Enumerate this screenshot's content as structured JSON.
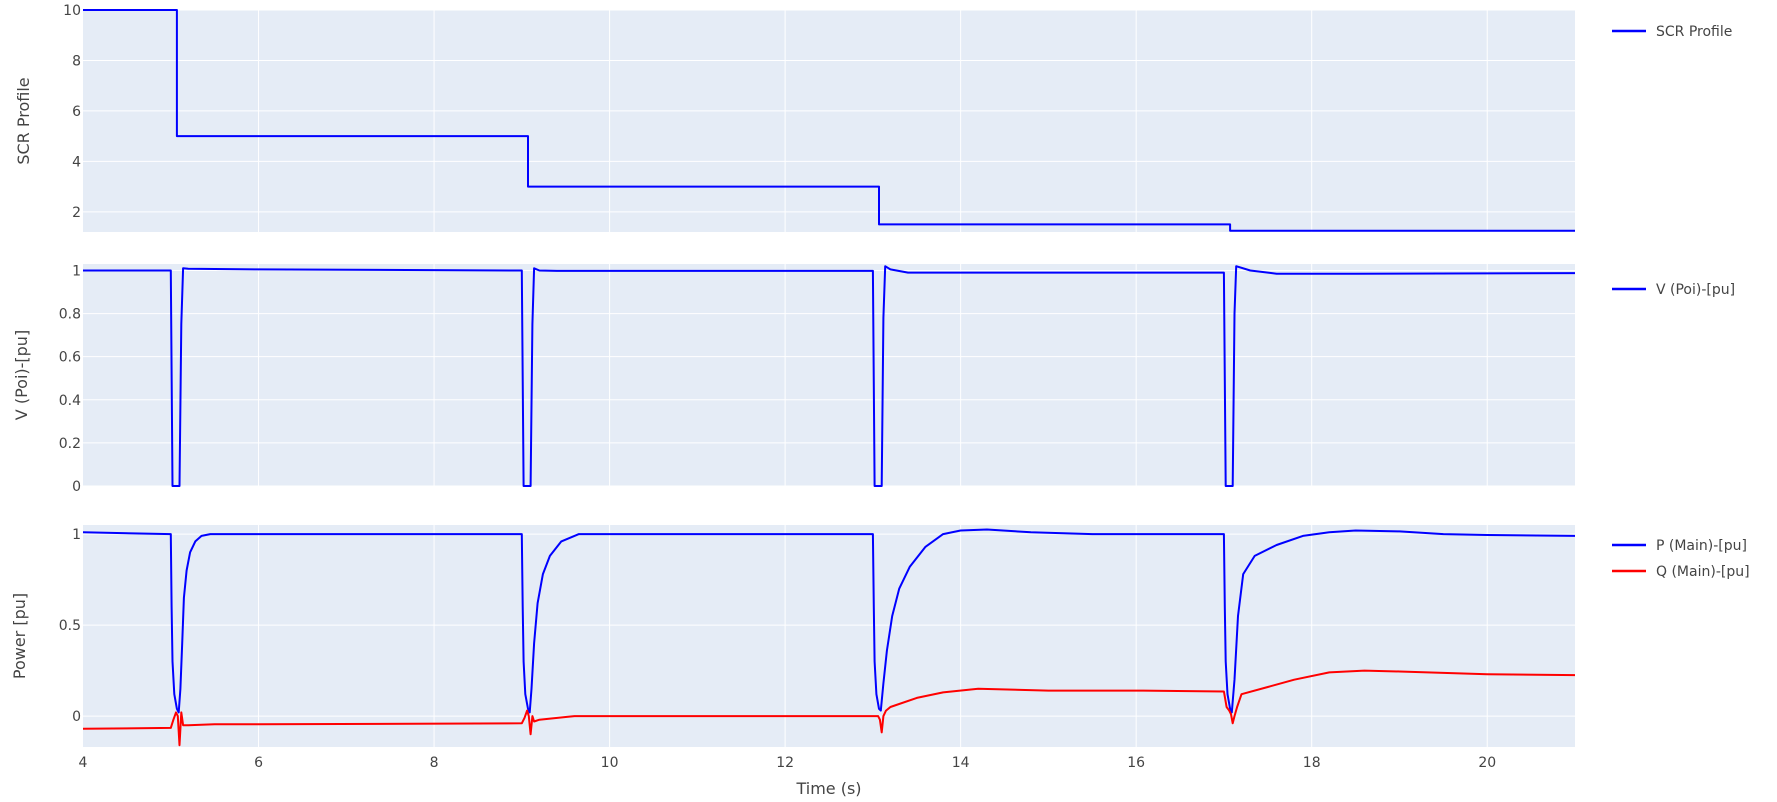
{
  "chart_data": {
    "type": "line",
    "xlabel": "Time (s)",
    "xlim": [
      4,
      21
    ],
    "x_ticks": [
      "4",
      "6",
      "8",
      "10",
      "12",
      "14",
      "16",
      "18",
      "20"
    ],
    "grid": true,
    "legend": "right",
    "subplots": [
      {
        "ylabel": "SCR Profile",
        "ylim": [
          1.2,
          10
        ],
        "y_ticks": [
          "2",
          "4",
          "6",
          "8",
          "10"
        ],
        "series": [
          {
            "name": "SCR Profile",
            "color": "#0000ff",
            "x": [
              4,
              5.07,
              5.07,
              9.07,
              9.07,
              13.07,
              13.07,
              17.07,
              17.07,
              21
            ],
            "y": [
              10,
              10,
              5,
              5,
              3,
              3,
              1.5,
              1.5,
              1.25,
              1.25
            ]
          }
        ]
      },
      {
        "ylabel": "V (Poi)-[pu]",
        "ylim": [
          0,
          1.03
        ],
        "y_ticks": [
          "0",
          "0.2",
          "0.4",
          "0.6",
          "0.8",
          "1"
        ],
        "series": [
          {
            "name": "V (Poi)-[pu]",
            "color": "#0000ff",
            "x": [
              4,
              5.0,
              5.02,
              5.1,
              5.12,
              5.14,
              5.2,
              6.0,
              9.0,
              9.02,
              9.1,
              9.12,
              9.14,
              9.2,
              9.4,
              10.0,
              13.0,
              13.02,
              13.1,
              13.12,
              13.14,
              13.2,
              13.4,
              14.0,
              17.0,
              17.02,
              17.1,
              17.12,
              17.14,
              17.3,
              17.6,
              18.5,
              21
            ],
            "y": [
              1.0,
              1.0,
              0.0,
              0.0,
              0.75,
              1.01,
              1.008,
              1.005,
              1.0,
              0.0,
              0.0,
              0.75,
              1.01,
              1.0,
              0.998,
              0.998,
              0.998,
              0.0,
              0.0,
              0.78,
              1.02,
              1.005,
              0.99,
              0.99,
              0.99,
              0.0,
              0.0,
              0.8,
              1.02,
              1.0,
              0.985,
              0.985,
              0.988
            ]
          }
        ]
      },
      {
        "ylabel": "Power [pu]",
        "ylim": [
          -0.17,
          1.05
        ],
        "y_ticks": [
          "0",
          "0.5",
          "1"
        ],
        "series": [
          {
            "name": "P (Main)-[pu]",
            "color": "#0000ff",
            "x": [
              4,
              5.0,
              5.01,
              5.02,
              5.04,
              5.07,
              5.09,
              5.11,
              5.13,
              5.15,
              5.18,
              5.22,
              5.28,
              5.35,
              5.45,
              5.6,
              6.0,
              9.0,
              9.01,
              9.02,
              9.04,
              9.07,
              9.09,
              9.11,
              9.14,
              9.18,
              9.24,
              9.32,
              9.45,
              9.65,
              13.0,
              13.01,
              13.02,
              13.04,
              13.07,
              13.09,
              13.12,
              13.16,
              13.22,
              13.3,
              13.42,
              13.6,
              13.8,
              14.0,
              14.3,
              14.8,
              15.5,
              17.0,
              17.01,
              17.02,
              17.04,
              17.07,
              17.09,
              17.12,
              17.16,
              17.22,
              17.35,
              17.6,
              17.9,
              18.2,
              18.5,
              19.0,
              19.5,
              20.0,
              21.0
            ],
            "y": [
              1.01,
              1.0,
              0.6,
              0.3,
              0.12,
              0.04,
              0.02,
              0.15,
              0.4,
              0.65,
              0.8,
              0.9,
              0.96,
              0.99,
              1.0,
              1.0,
              1.0,
              1.0,
              0.6,
              0.3,
              0.12,
              0.04,
              0.02,
              0.15,
              0.4,
              0.62,
              0.78,
              0.88,
              0.96,
              1.0,
              1.0,
              0.6,
              0.3,
              0.12,
              0.04,
              0.03,
              0.18,
              0.36,
              0.55,
              0.7,
              0.82,
              0.93,
              1.0,
              1.02,
              1.025,
              1.01,
              1.0,
              1.0,
              0.6,
              0.3,
              0.12,
              0.04,
              0.02,
              0.2,
              0.55,
              0.78,
              0.88,
              0.94,
              0.99,
              1.01,
              1.02,
              1.015,
              1.0,
              0.995,
              0.99
            ]
          },
          {
            "name": "Q (Main)-[pu]",
            "color": "#ff0000",
            "x": [
              4,
              5.0,
              5.03,
              5.06,
              5.08,
              5.1,
              5.12,
              5.14,
              5.2,
              5.5,
              6.0,
              9.0,
              9.03,
              9.06,
              9.08,
              9.1,
              9.12,
              9.14,
              9.2,
              9.5,
              9.6,
              10.0,
              13.0,
              13.03,
              13.06,
              13.08,
              13.1,
              13.12,
              13.15,
              13.2,
              13.5,
              13.8,
              14.2,
              15.0,
              16.0,
              17.0,
              17.03,
              17.06,
              17.08,
              17.1,
              17.12,
              17.15,
              17.2,
              17.5,
              17.8,
              18.2,
              18.6,
              19.0,
              20.0,
              21.0
            ],
            "y": [
              -0.07,
              -0.065,
              -0.02,
              0.02,
              0.0,
              -0.16,
              0.02,
              -0.05,
              -0.05,
              -0.045,
              -0.045,
              -0.04,
              -0.01,
              0.03,
              0.0,
              -0.1,
              0.0,
              -0.03,
              -0.02,
              -0.005,
              0.0,
              0.0,
              0.0,
              0.0,
              0.0,
              -0.02,
              -0.09,
              0.0,
              0.03,
              0.05,
              0.1,
              0.13,
              0.15,
              0.14,
              0.14,
              0.135,
              0.05,
              0.03,
              0.01,
              -0.04,
              0.0,
              0.05,
              0.12,
              0.16,
              0.2,
              0.24,
              0.25,
              0.245,
              0.23,
              0.225
            ]
          }
        ]
      }
    ]
  }
}
